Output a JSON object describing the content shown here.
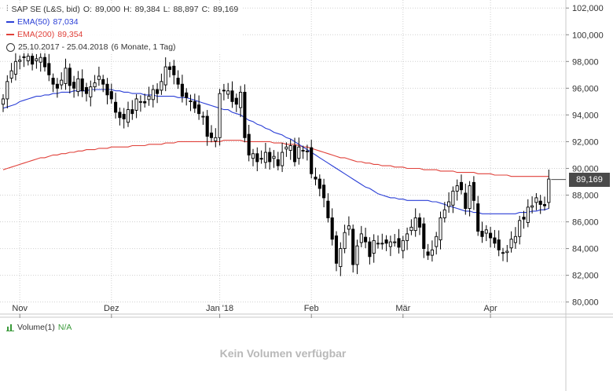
{
  "legend": {
    "title": "SAP SE (L&S, bid)",
    "open_label": "O:",
    "open": "89,000",
    "high_label": "H:",
    "high": "89,384",
    "low_label": "L:",
    "low": "88,897",
    "close_label": "C:",
    "close": "89,169",
    "ema50_label": "EMA(50)",
    "ema50_value": "87,034",
    "ema200_label": "EMA(200)",
    "ema200_value": "89,354",
    "range": "25.10.2017 - 25.04.2018",
    "period": "(6 Monate, 1 Tag)"
  },
  "price_tag": "89,169",
  "volume": {
    "label": "Volume(1)",
    "value": "N/A",
    "empty_message": "Kein Volumen verfügbar"
  },
  "colors": {
    "ema50": "#2b3fd6",
    "ema200": "#e0413a",
    "candle": "#000000",
    "grid": "#d0d0d0",
    "volume_icon": "#3a9a3a"
  },
  "chart_data": {
    "type": "candlestick",
    "y_tick_labels": [
      "80,000",
      "82,000",
      "84,000",
      "86,000",
      "88,000",
      "90,000",
      "92,000",
      "94,000",
      "96,000",
      "98,000",
      "100,000",
      "102,000"
    ],
    "y_ticks": [
      80,
      82,
      84,
      86,
      88,
      90,
      92,
      94,
      96,
      98,
      100,
      102
    ],
    "ylim": [
      79.1,
      102.6
    ],
    "x_tick_labels": [
      "Nov",
      "Dez",
      "Jan '18",
      "Feb",
      "Mär",
      "Apr"
    ],
    "x_tick_index": [
      4,
      26,
      52,
      74,
      96,
      117
    ],
    "n_bars": 132,
    "grid": true,
    "last_price": 89.169,
    "close": [
      95.2,
      96.5,
      97.3,
      98.0,
      98.1,
      98.3,
      98.4,
      97.8,
      98.2,
      98.3,
      97.6,
      97.0,
      96.3,
      96.0,
      96.6,
      97.5,
      96.2,
      96.0,
      96.7,
      95.8,
      95.6,
      96.1,
      96.4,
      96.9,
      96.3,
      95.5,
      95.2,
      94.2,
      93.8,
      93.7,
      94.4,
      94.1,
      95.2,
      95.0,
      94.9,
      95.4,
      95.9,
      95.6,
      96.5,
      97.6,
      97.4,
      97.0,
      96.3,
      95.4,
      95.3,
      95.0,
      94.5,
      94.1,
      93.9,
      92.4,
      92.3,
      92.3,
      95.6,
      95.8,
      95.8,
      95.0,
      94.8,
      95.7,
      92.3,
      91.0,
      91.1,
      90.5,
      90.7,
      91.2,
      90.5,
      90.9,
      90.2,
      91.2,
      91.6,
      91.7,
      90.5,
      91.6,
      91.3,
      91.3,
      89.6,
      89.2,
      88.5,
      87.8,
      86.3,
      84.7,
      82.9,
      84.0,
      85.2,
      85.7,
      82.8,
      84.2,
      85.1,
      84.5,
      83.4,
      84.6,
      84.4,
      84.4,
      84.4,
      84.5,
      84.5,
      84.1,
      84.6,
      85.1,
      85.6,
      86.3,
      85.6,
      84.0,
      83.5,
      83.9,
      84.9,
      86.3,
      86.9,
      87.5,
      88.3,
      88.7,
      88.4,
      87.0,
      88.7,
      87.6,
      85.3,
      84.9,
      85.4,
      84.8,
      84.4,
      83.9,
      83.7,
      83.8,
      84.7,
      84.9,
      86.1,
      86.2,
      87.1,
      87.2,
      87.8,
      87.3,
      87.2,
      89.2
    ],
    "ema50": [
      94.5,
      94.6,
      94.7,
      94.8,
      95.0,
      95.1,
      95.2,
      95.3,
      95.4,
      95.4,
      95.5,
      95.5,
      95.6,
      95.6,
      95.7,
      95.7,
      95.7,
      95.8,
      95.8,
      95.8,
      95.8,
      95.9,
      95.9,
      95.9,
      95.9,
      95.9,
      95.9,
      95.8,
      95.8,
      95.7,
      95.7,
      95.6,
      95.6,
      95.6,
      95.5,
      95.5,
      95.5,
      95.4,
      95.4,
      95.4,
      95.4,
      95.4,
      95.3,
      95.3,
      95.3,
      95.2,
      95.1,
      95.0,
      94.9,
      94.8,
      94.7,
      94.6,
      94.5,
      94.4,
      94.4,
      94.2,
      94.1,
      94.0,
      93.8,
      93.6,
      93.5,
      93.3,
      93.2,
      93.0,
      92.9,
      92.7,
      92.6,
      92.5,
      92.3,
      92.2,
      92.0,
      91.8,
      91.6,
      91.4,
      91.2,
      91.0,
      90.8,
      90.6,
      90.4,
      90.2,
      90.0,
      89.8,
      89.6,
      89.4,
      89.2,
      89.0,
      88.8,
      88.6,
      88.5,
      88.3,
      88.1,
      88.0,
      87.9,
      87.8,
      87.8,
      87.7,
      87.7,
      87.6,
      87.6,
      87.6,
      87.6,
      87.6,
      87.6,
      87.5,
      87.5,
      87.4,
      87.3,
      87.2,
      87.1,
      87.0,
      86.9,
      86.8,
      86.8,
      86.7,
      86.7,
      86.6,
      86.6,
      86.6,
      86.6,
      86.6,
      86.6,
      86.6,
      86.6,
      86.6,
      86.7,
      86.7,
      86.7,
      86.8,
      86.8,
      86.9,
      86.9,
      87.0
    ],
    "ema200": [
      89.9,
      90.0,
      90.1,
      90.2,
      90.3,
      90.4,
      90.5,
      90.6,
      90.7,
      90.8,
      90.8,
      90.9,
      91.0,
      91.0,
      91.1,
      91.1,
      91.2,
      91.2,
      91.3,
      91.3,
      91.4,
      91.4,
      91.4,
      91.5,
      91.5,
      91.5,
      91.6,
      91.6,
      91.6,
      91.6,
      91.6,
      91.7,
      91.7,
      91.7,
      91.7,
      91.8,
      91.8,
      91.8,
      91.8,
      91.9,
      91.9,
      91.9,
      92.0,
      92.0,
      92.0,
      92.0,
      92.0,
      92.0,
      92.0,
      92.0,
      92.0,
      92.0,
      92.0,
      92.1,
      92.1,
      92.1,
      92.1,
      92.1,
      92.0,
      92.0,
      92.0,
      92.0,
      92.0,
      92.0,
      92.0,
      91.9,
      91.9,
      91.9,
      91.8,
      91.8,
      91.8,
      91.7,
      91.6,
      91.6,
      91.5,
      91.4,
      91.3,
      91.2,
      91.1,
      91.0,
      90.9,
      90.8,
      90.8,
      90.7,
      90.6,
      90.5,
      90.5,
      90.4,
      90.4,
      90.3,
      90.3,
      90.2,
      90.2,
      90.2,
      90.1,
      90.1,
      90.1,
      90.0,
      90.0,
      90.0,
      90.0,
      89.9,
      89.9,
      89.9,
      89.9,
      89.8,
      89.8,
      89.8,
      89.8,
      89.7,
      89.7,
      89.7,
      89.7,
      89.7,
      89.6,
      89.6,
      89.6,
      89.6,
      89.5,
      89.5,
      89.5,
      89.5,
      89.4,
      89.4,
      89.4,
      89.4,
      89.4,
      89.4,
      89.4,
      89.4,
      89.4,
      89.4
    ]
  }
}
